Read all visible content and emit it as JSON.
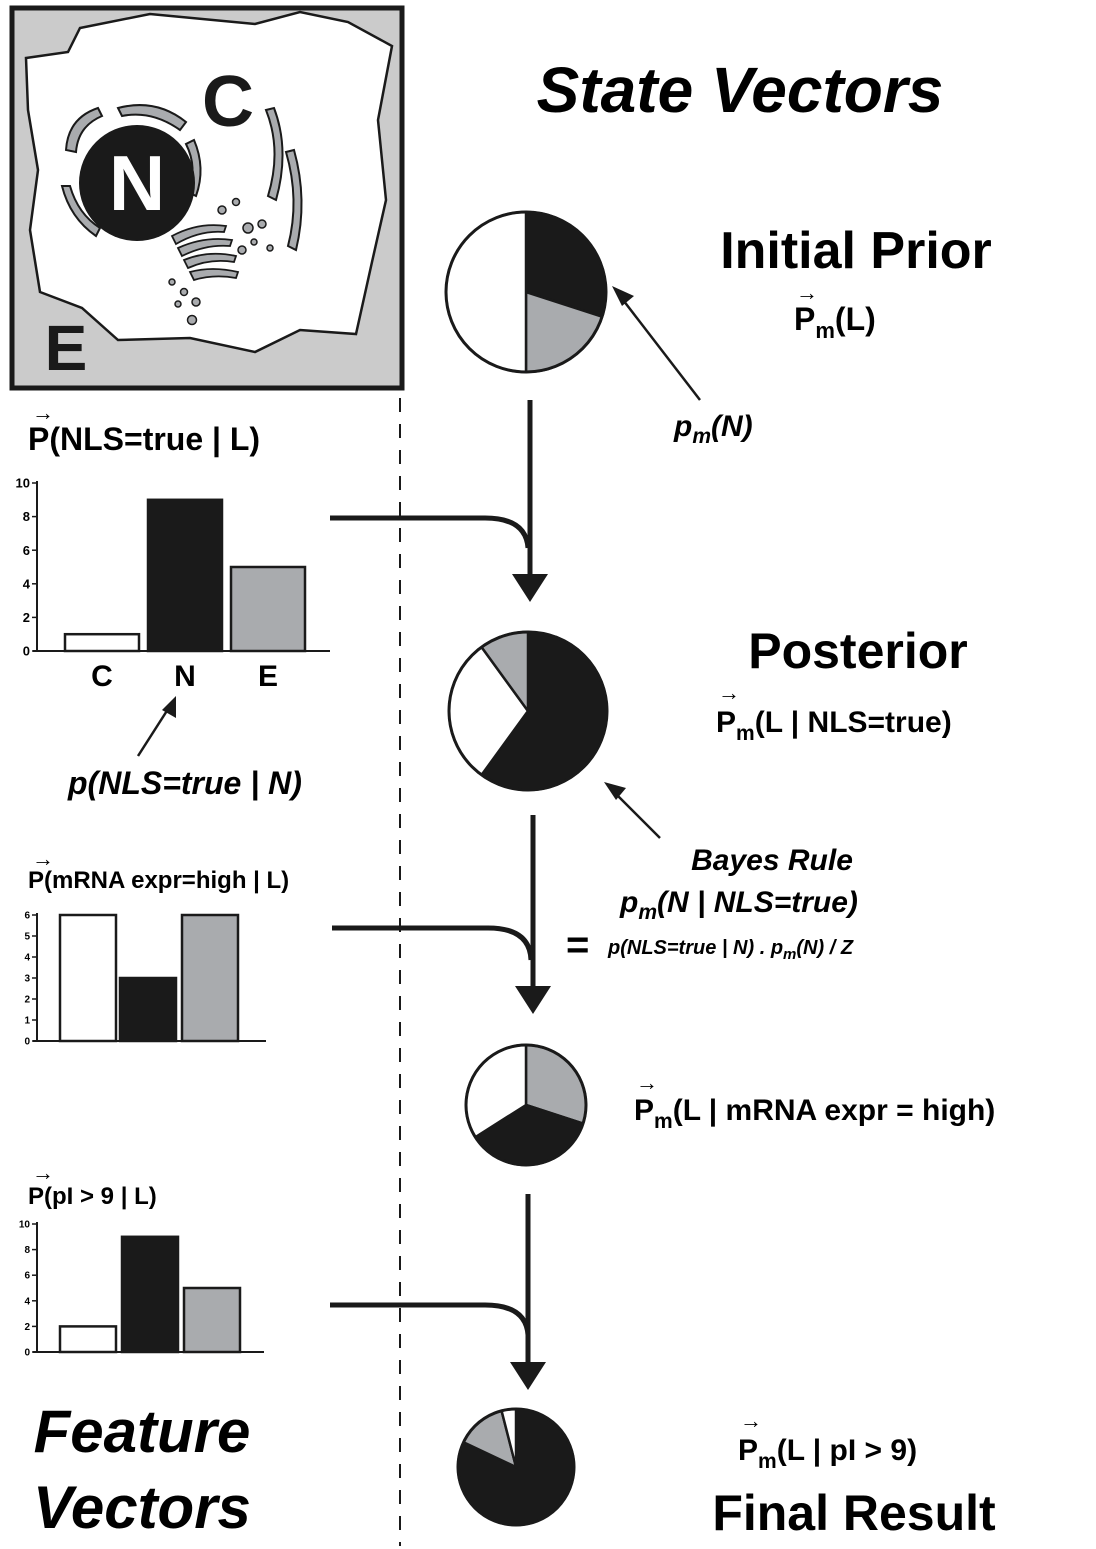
{
  "colors": {
    "ink": "#1a1a1a",
    "gray": "#a9abae",
    "light": "#cbcbcb",
    "white": "#ffffff"
  },
  "cell": {
    "cytoplasm_label": "C",
    "nucleus_label": "N",
    "extracellular_label": "E"
  },
  "headings": {
    "state": "State Vectors",
    "feature_line1": "Feature",
    "feature_line2": "Vectors",
    "initial_prior": "Initial Prior",
    "posterior": "Posterior",
    "final_result": "Final Result"
  },
  "vectors": {
    "prior": {
      "arrow": "→",
      "base": "P",
      "sub": "m",
      "tail": "(L)"
    },
    "posterior": {
      "arrow": "→",
      "base": "P",
      "sub": "m",
      "tail": "(L | NLS=true)"
    },
    "mrna_state": {
      "arrow": "→",
      "base": "P",
      "sub": "m",
      "tail": "(L | mRNA expr = high)"
    },
    "final": {
      "arrow": "→",
      "base": "P",
      "sub": "m",
      "tail": "(L | pI > 9)"
    }
  },
  "annotations": {
    "pm_n": {
      "base": "p",
      "sub": "m",
      "tail": "(N)"
    },
    "p_nls_n": "p(NLS=true | N)",
    "bayes_title": "Bayes Rule",
    "bayes_lhs": {
      "base": "p",
      "sub": "m",
      "tail": "(N | NLS=true)"
    },
    "bayes_eq": "=",
    "bayes_rhs": {
      "a": "p(NLS=true | N) . p",
      "sub": "m",
      "b": "(N) / Z"
    }
  },
  "chart_data": [
    {
      "type": "bar",
      "title": "P(NLS=true | L)",
      "title_arrow": "→",
      "categories": [
        "C",
        "N",
        "E"
      ],
      "values": [
        1,
        9,
        5
      ],
      "colors": [
        "#ffffff",
        "#1a1a1a",
        "#a9abae"
      ],
      "ylim": [
        0,
        10
      ],
      "yticks": [
        "0",
        "2",
        "4",
        "6",
        "8",
        "10"
      ],
      "show_category_labels": true
    },
    {
      "type": "bar",
      "title": "P(mRNA expr=high | L)",
      "title_arrow": "→",
      "categories": [
        "C",
        "N",
        "E"
      ],
      "values": [
        6,
        3,
        6
      ],
      "colors": [
        "#ffffff",
        "#1a1a1a",
        "#a9abae"
      ],
      "ylim": [
        0,
        6
      ],
      "yticks": [
        "0",
        "1",
        "2",
        "3",
        "4",
        "5",
        "6"
      ],
      "show_category_labels": false
    },
    {
      "type": "bar",
      "title": "P(pI > 9 | L)",
      "title_arrow": "→",
      "categories": [
        "C",
        "N",
        "E"
      ],
      "values": [
        2,
        9,
        5
      ],
      "colors": [
        "#ffffff",
        "#1a1a1a",
        "#a9abae"
      ],
      "ylim": [
        0,
        10
      ],
      "yticks": [
        "0",
        "2",
        "4",
        "6",
        "8",
        "10"
      ],
      "show_category_labels": false
    },
    {
      "type": "pie",
      "title": "Initial Prior",
      "categories": [
        "N",
        "E",
        "C"
      ],
      "values": [
        0.3,
        0.2,
        0.5
      ],
      "colors": [
        "#1a1a1a",
        "#a9abae",
        "#ffffff"
      ]
    },
    {
      "type": "pie",
      "title": "Posterior",
      "categories": [
        "N",
        "C",
        "E"
      ],
      "values": [
        0.6,
        0.3,
        0.1
      ],
      "colors": [
        "#1a1a1a",
        "#ffffff",
        "#a9abae"
      ]
    },
    {
      "type": "pie",
      "title": "P(L | mRNA expr = high)",
      "categories": [
        "E",
        "N",
        "C"
      ],
      "values": [
        0.3,
        0.36,
        0.34
      ],
      "colors": [
        "#a9abae",
        "#1a1a1a",
        "#ffffff"
      ]
    },
    {
      "type": "pie",
      "title": "Final Result",
      "categories": [
        "N",
        "E",
        "C"
      ],
      "values": [
        0.82,
        0.14,
        0.04
      ],
      "colors": [
        "#1a1a1a",
        "#a9abae",
        "#ffffff"
      ]
    }
  ]
}
